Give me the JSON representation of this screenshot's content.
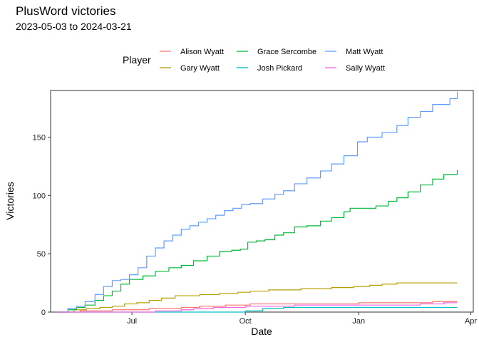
{
  "chart_data": {
    "type": "line",
    "title": "PlusWord victories",
    "subtitle": "2023-05-03 to 2024-03-21",
    "xlabel": "Date",
    "ylabel": "Victories",
    "legend_title": "Player",
    "legend_position": "top",
    "grid": false,
    "xlim": [
      "2023-04-26",
      "2024-04-03"
    ],
    "ylim": [
      0,
      190
    ],
    "x_ticks": [
      {
        "date": "2023-07-01",
        "label": "Jul"
      },
      {
        "date": "2023-10-01",
        "label": "Oct"
      },
      {
        "date": "2024-01-01",
        "label": "Jan"
      },
      {
        "date": "2024-04-01",
        "label": "Apr"
      }
    ],
    "y_ticks": [
      0,
      50,
      100,
      150
    ],
    "series": [
      {
        "name": "Alison Wyatt",
        "color": "#F8766D",
        "points": [
          [
            "2023-05-03",
            0
          ],
          [
            "2023-05-20",
            1
          ],
          [
            "2023-06-15",
            2
          ],
          [
            "2023-07-15",
            3
          ],
          [
            "2023-08-10",
            4
          ],
          [
            "2023-08-25",
            5
          ],
          [
            "2023-09-15",
            6
          ],
          [
            "2023-10-05",
            7
          ],
          [
            "2023-11-05",
            7
          ],
          [
            "2024-01-01",
            8
          ],
          [
            "2024-02-15",
            8
          ],
          [
            "2024-03-01",
            9
          ],
          [
            "2024-03-21",
            9
          ]
        ]
      },
      {
        "name": "Gary Wyatt",
        "color": "#B79F00",
        "points": [
          [
            "2023-05-03",
            0
          ],
          [
            "2023-05-15",
            2
          ],
          [
            "2023-05-25",
            3
          ],
          [
            "2023-06-05",
            4
          ],
          [
            "2023-06-15",
            5
          ],
          [
            "2023-06-25",
            7
          ],
          [
            "2023-07-05",
            8
          ],
          [
            "2023-07-15",
            10
          ],
          [
            "2023-07-25",
            12
          ],
          [
            "2023-08-05",
            14
          ],
          [
            "2023-08-25",
            15
          ],
          [
            "2023-09-10",
            16
          ],
          [
            "2023-09-25",
            17
          ],
          [
            "2023-10-05",
            18
          ],
          [
            "2023-10-20",
            19
          ],
          [
            "2023-11-15",
            20
          ],
          [
            "2023-12-10",
            21
          ],
          [
            "2023-12-28",
            22
          ],
          [
            "2024-01-10",
            23
          ],
          [
            "2024-01-20",
            24
          ],
          [
            "2024-02-01",
            25
          ],
          [
            "2024-03-21",
            25
          ]
        ]
      },
      {
        "name": "Grace Sercombe",
        "color": "#00BA38",
        "points": [
          [
            "2023-05-03",
            0
          ],
          [
            "2023-05-10",
            2
          ],
          [
            "2023-05-17",
            4
          ],
          [
            "2023-05-24",
            6
          ],
          [
            "2023-06-01",
            10
          ],
          [
            "2023-06-08",
            14
          ],
          [
            "2023-06-15",
            18
          ],
          [
            "2023-06-22",
            24
          ],
          [
            "2023-06-29",
            28
          ],
          [
            "2023-07-10",
            31
          ],
          [
            "2023-07-20",
            35
          ],
          [
            "2023-07-31",
            38
          ],
          [
            "2023-08-10",
            40
          ],
          [
            "2023-08-20",
            44
          ],
          [
            "2023-08-31",
            48
          ],
          [
            "2023-09-10",
            52
          ],
          [
            "2023-09-20",
            53
          ],
          [
            "2023-09-27",
            54
          ],
          [
            "2023-10-03",
            60
          ],
          [
            "2023-10-10",
            61
          ],
          [
            "2023-10-17",
            62
          ],
          [
            "2023-10-25",
            66
          ],
          [
            "2023-11-01",
            68
          ],
          [
            "2023-11-10",
            73
          ],
          [
            "2023-11-20",
            74
          ],
          [
            "2023-12-01",
            78
          ],
          [
            "2023-12-10",
            81
          ],
          [
            "2023-12-20",
            86
          ],
          [
            "2023-12-25",
            89
          ],
          [
            "2024-01-05",
            89
          ],
          [
            "2024-01-15",
            91
          ],
          [
            "2024-01-25",
            95
          ],
          [
            "2024-02-01",
            98
          ],
          [
            "2024-02-10",
            103
          ],
          [
            "2024-02-20",
            109
          ],
          [
            "2024-03-01",
            114
          ],
          [
            "2024-03-10",
            118
          ],
          [
            "2024-03-21",
            122
          ]
        ]
      },
      {
        "name": "Josh Pickard",
        "color": "#00BFC4",
        "points": [
          [
            "2023-05-03",
            0
          ],
          [
            "2023-09-20",
            0
          ],
          [
            "2023-10-01",
            1
          ],
          [
            "2023-10-15",
            3
          ],
          [
            "2023-11-01",
            4
          ],
          [
            "2024-03-21",
            4
          ]
        ]
      },
      {
        "name": "Matt Wyatt",
        "color": "#619CFF",
        "points": [
          [
            "2023-05-03",
            0
          ],
          [
            "2023-05-10",
            3
          ],
          [
            "2023-05-17",
            5
          ],
          [
            "2023-05-24",
            9
          ],
          [
            "2023-06-01",
            15
          ],
          [
            "2023-06-08",
            22
          ],
          [
            "2023-06-15",
            27
          ],
          [
            "2023-06-22",
            28
          ],
          [
            "2023-06-29",
            32
          ],
          [
            "2023-07-06",
            38
          ],
          [
            "2023-07-13",
            48
          ],
          [
            "2023-07-20",
            55
          ],
          [
            "2023-07-27",
            61
          ],
          [
            "2023-08-03",
            66
          ],
          [
            "2023-08-10",
            71
          ],
          [
            "2023-08-17",
            74
          ],
          [
            "2023-08-24",
            77
          ],
          [
            "2023-08-31",
            80
          ],
          [
            "2023-09-07",
            83
          ],
          [
            "2023-09-14",
            87
          ],
          [
            "2023-09-21",
            89
          ],
          [
            "2023-09-28",
            92
          ],
          [
            "2023-10-05",
            93
          ],
          [
            "2023-10-15",
            97
          ],
          [
            "2023-10-25",
            101
          ],
          [
            "2023-11-01",
            104
          ],
          [
            "2023-11-10",
            110
          ],
          [
            "2023-11-20",
            115
          ],
          [
            "2023-12-01",
            121
          ],
          [
            "2023-12-10",
            127
          ],
          [
            "2023-12-20",
            134
          ],
          [
            "2023-12-31",
            146
          ],
          [
            "2024-01-08",
            150
          ],
          [
            "2024-01-20",
            154
          ],
          [
            "2024-02-01",
            160
          ],
          [
            "2024-02-10",
            167
          ],
          [
            "2024-02-20",
            172
          ],
          [
            "2024-03-01",
            178
          ],
          [
            "2024-03-15",
            183
          ],
          [
            "2024-03-21",
            189
          ]
        ]
      },
      {
        "name": "Sally Wyatt",
        "color": "#F564E3",
        "points": [
          [
            "2023-05-03",
            0
          ],
          [
            "2023-07-01",
            0
          ],
          [
            "2023-07-20",
            1
          ],
          [
            "2023-08-10",
            2
          ],
          [
            "2023-08-20",
            3
          ],
          [
            "2023-09-05",
            4
          ],
          [
            "2023-10-01",
            5
          ],
          [
            "2023-11-10",
            6
          ],
          [
            "2024-01-10",
            6
          ],
          [
            "2024-02-20",
            7
          ],
          [
            "2024-03-10",
            8
          ],
          [
            "2024-03-21",
            8
          ]
        ]
      }
    ]
  }
}
